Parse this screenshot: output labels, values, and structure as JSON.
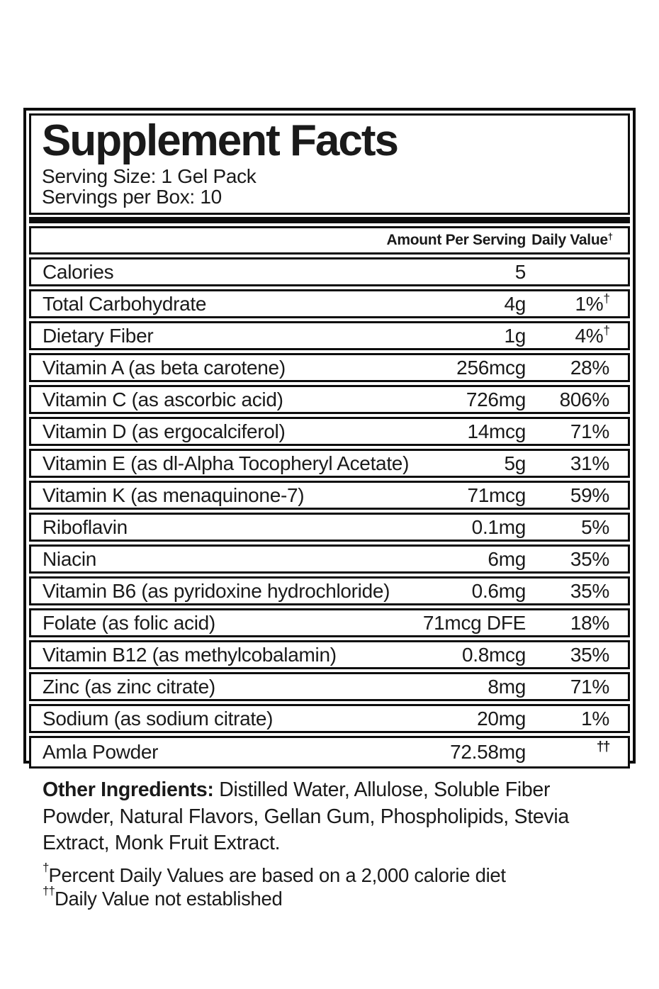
{
  "colors": {
    "ink": "#1a1a1a",
    "border": "#0d0d0d",
    "background": "#ffffff"
  },
  "label": {
    "title": "Supplement Facts",
    "serving_size": "Serving Size: 1 Gel Pack",
    "servings_per_box": "Servings per Box: 10",
    "columns": {
      "amount": "Amount Per Serving",
      "daily_value": "Daily Value",
      "daily_value_sup": "†"
    },
    "rows": [
      {
        "name": "Calories",
        "amount": "5",
        "dv": "",
        "dv_sup": ""
      },
      {
        "name": "Total Carbohydrate",
        "amount": "4g",
        "dv": "1%",
        "dv_sup": "†"
      },
      {
        "name": "Dietary Fiber",
        "amount": "1g",
        "dv": "4%",
        "dv_sup": "†"
      },
      {
        "name": "Vitamin A (as beta carotene)",
        "amount": "256mcg",
        "dv": "28%",
        "dv_sup": ""
      },
      {
        "name": "Vitamin C (as ascorbic acid)",
        "amount": "726mg",
        "dv": "806%",
        "dv_sup": ""
      },
      {
        "name": "Vitamin D (as ergocalciferol)",
        "amount": "14mcg",
        "dv": "71%",
        "dv_sup": ""
      },
      {
        "name": "Vitamin E (as dl-Alpha Tocopheryl Acetate)",
        "amount": "5g",
        "dv": "31%",
        "dv_sup": ""
      },
      {
        "name": "Vitamin K (as menaquinone-7)",
        "amount": "71mcg",
        "dv": "59%",
        "dv_sup": ""
      },
      {
        "name": "Riboflavin",
        "amount": "0.1mg",
        "dv": "5%",
        "dv_sup": ""
      },
      {
        "name": "Niacin",
        "amount": "6mg",
        "dv": "35%",
        "dv_sup": ""
      },
      {
        "name": "Vitamin B6 (as pyridoxine hydrochloride)",
        "amount": "0.6mg",
        "dv": "35%",
        "dv_sup": ""
      },
      {
        "name": "Folate (as folic acid)",
        "amount": "71mcg DFE",
        "dv": "18%",
        "dv_sup": ""
      },
      {
        "name": "Vitamin B12 (as methylcobalamin)",
        "amount": "0.8mcg",
        "dv": "35%",
        "dv_sup": ""
      },
      {
        "name": "Zinc (as zinc citrate)",
        "amount": "8mg",
        "dv": "71%",
        "dv_sup": ""
      },
      {
        "name": "Sodium (as sodium citrate)",
        "amount": "20mg",
        "dv": "1%",
        "dv_sup": ""
      },
      {
        "name": "Amla Powder",
        "amount": "72.58mg",
        "dv": "",
        "dv_sup": "††",
        "tall": true
      }
    ]
  },
  "footer": {
    "other_ingredients_label": "Other Ingredients:",
    "other_ingredients_text": "Distilled Water, Allulose, Soluble Fiber Powder, Natural Flavors, Gellan Gum, Phospholipids, Stevia Extract, Monk Fruit Extract.",
    "footnote_daily_values": {
      "sup": "†",
      "text": "Percent Daily Values are based on a 2,000 calorie diet"
    },
    "footnote_not_established": {
      "sup": "††",
      "text": "Daily Value not established"
    }
  }
}
